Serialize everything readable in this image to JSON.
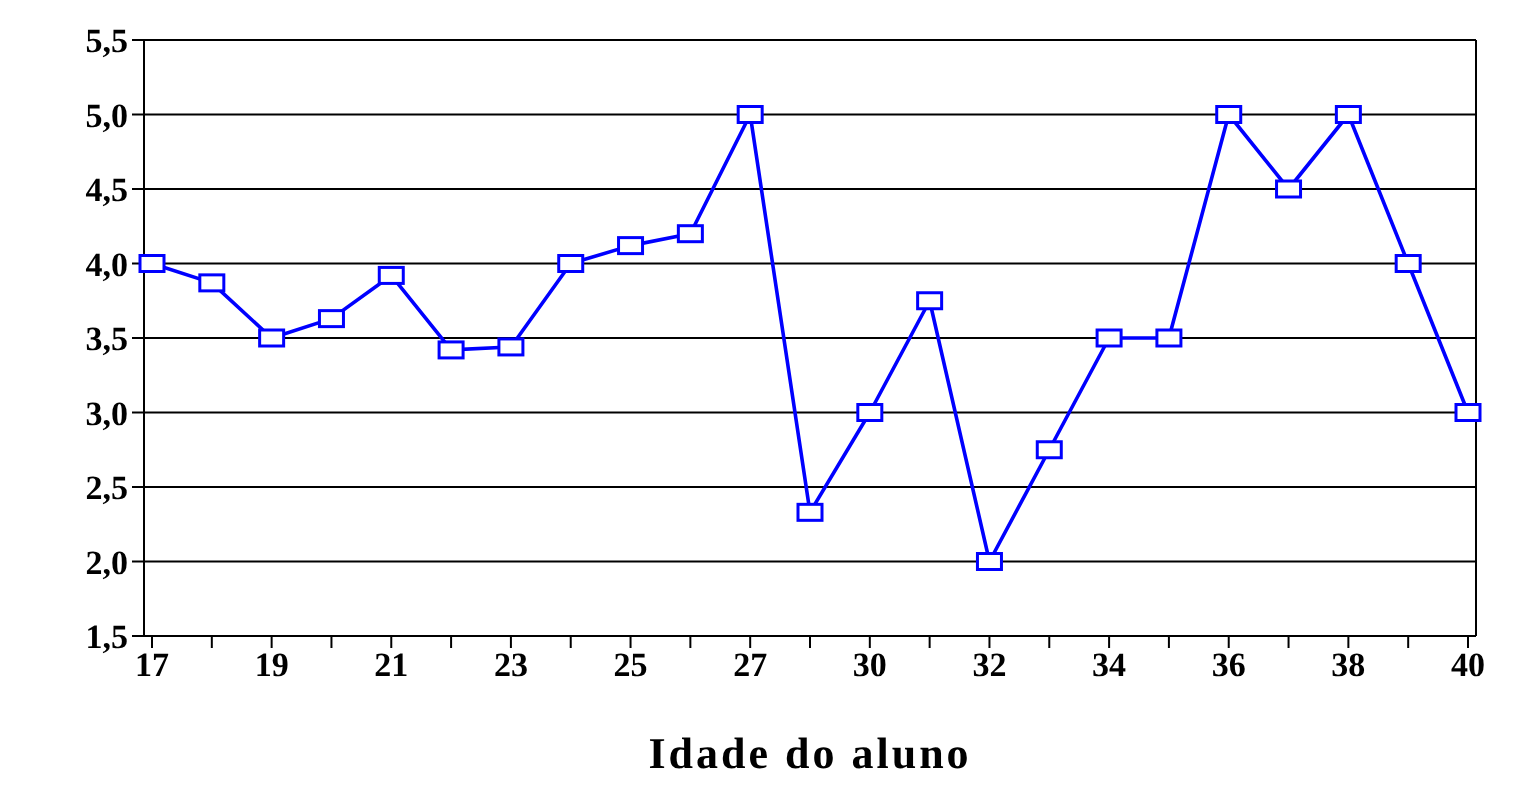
{
  "chart_data": {
    "type": "line",
    "xlabel": "Idade do aluno",
    "categories": [
      "17",
      null,
      "19",
      null,
      "21",
      null,
      "23",
      null,
      "25",
      null,
      "27",
      null,
      "30",
      null,
      "32",
      null,
      "34",
      null,
      "36",
      null,
      "38",
      null,
      "40"
    ],
    "series": [
      {
        "color": "#0000ff",
        "values": [
          4.0,
          3.87,
          3.5,
          3.63,
          3.92,
          3.42,
          3.44,
          4.0,
          4.12,
          4.2,
          5.0,
          2.33,
          3.0,
          3.75,
          2.0,
          2.75,
          3.5,
          3.5,
          5.0,
          4.5,
          5.0,
          4.0,
          3.0
        ]
      }
    ],
    "ylim": [
      1.5,
      5.5
    ],
    "yticks": [
      {
        "value": 1.5,
        "label": "1,5"
      },
      {
        "value": 2,
        "label": "2,0"
      },
      {
        "value": 2.5,
        "label": "2,5"
      },
      {
        "value": 3,
        "label": "3,0"
      },
      {
        "value": 3.5,
        "label": "3,5"
      },
      {
        "value": 4,
        "label": "4,0"
      },
      {
        "value": 4.5,
        "label": "4,5"
      },
      {
        "value": 5,
        "label": "5,0"
      },
      {
        "value": 5.5,
        "label": "5,5"
      }
    ],
    "grid": "y",
    "marker": "square",
    "line_style": "solid"
  }
}
